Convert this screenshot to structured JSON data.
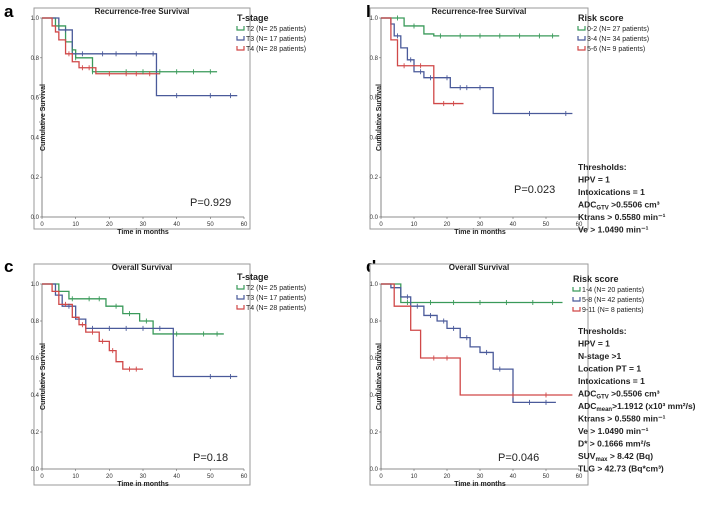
{
  "chart_data": [
    {
      "type": "line",
      "letter": "a",
      "title": "Recurrence-free Survival",
      "xlabel": "Time in months",
      "ylabel": "Cumulative Survival",
      "xlim": [
        0,
        60
      ],
      "ylim": [
        0.0,
        1.0
      ],
      "xticks": [
        "0",
        "10",
        "20",
        "30",
        "40",
        "50",
        "60"
      ],
      "yticks": [
        "0.0",
        "0.2",
        "0.4",
        "0.6",
        "0.8",
        "1.0"
      ],
      "p_value": "P=0.929",
      "legend_title": "T-stage",
      "legend_position": "outside-right",
      "series": [
        {
          "name": "T2",
          "label": "T2  (N= 25 patients)",
          "color": "#3a9a5a",
          "x": [
            0,
            4,
            7,
            9,
            10,
            15,
            52
          ],
          "y": [
            1.0,
            0.96,
            0.88,
            0.84,
            0.8,
            0.73,
            0.73
          ]
        },
        {
          "name": "T3",
          "label": "T3  (N= 17 patients)",
          "color": "#4a5a9a",
          "x": [
            0,
            5,
            9,
            15,
            34,
            58
          ],
          "y": [
            1.0,
            0.94,
            0.82,
            0.82,
            0.61,
            0.61
          ]
        },
        {
          "name": "T4",
          "label": "T4  (N= 28 patients)",
          "color": "#d04848",
          "x": [
            0,
            3,
            4,
            5,
            7,
            9,
            11,
            16,
            35
          ],
          "y": [
            1.0,
            0.96,
            0.93,
            0.89,
            0.82,
            0.78,
            0.75,
            0.72,
            0.72
          ]
        }
      ],
      "censor_marks": [
        {
          "series": 0,
          "x": [
            5,
            9,
            10,
            15,
            25,
            30,
            35,
            40,
            45,
            50
          ]
        },
        {
          "series": 1,
          "x": [
            7,
            12,
            18,
            22,
            28,
            33,
            40,
            50,
            56
          ]
        },
        {
          "series": 2,
          "x": [
            8,
            12,
            14,
            20,
            25,
            28,
            32
          ]
        }
      ],
      "thresholds_title": "",
      "thresholds": []
    },
    {
      "type": "line",
      "letter": "b",
      "title": "Recurrence-free Survival",
      "xlabel": "Time in months",
      "ylabel": "Cumulative Survival",
      "xlim": [
        0,
        60
      ],
      "ylim": [
        0.0,
        1.0
      ],
      "xticks": [
        "0",
        "10",
        "20",
        "30",
        "40",
        "50",
        "60"
      ],
      "yticks": [
        "0.0",
        "0.2",
        "0.4",
        "0.6",
        "0.8",
        "1.0"
      ],
      "p_value": "P=0.023",
      "legend_title": "Risk score",
      "legend_position": "outside-right",
      "series": [
        {
          "name": "0-2",
          "label": "0-2  (N= 27 patients)",
          "color": "#3a9a5a",
          "x": [
            0,
            7,
            13,
            16,
            54
          ],
          "y": [
            1.0,
            0.96,
            0.92,
            0.91,
            0.91
          ]
        },
        {
          "name": "3-4",
          "label": "3-4  (N= 34 patients)",
          "color": "#4a5a9a",
          "x": [
            0,
            3,
            4,
            6,
            8,
            10,
            13,
            21,
            34,
            58
          ],
          "y": [
            1.0,
            0.97,
            0.91,
            0.85,
            0.79,
            0.73,
            0.7,
            0.65,
            0.52,
            0.52
          ]
        },
        {
          "name": "5-6",
          "label": "5-6  (N= 9 patients)",
          "color": "#d04848",
          "x": [
            0,
            3,
            5,
            9,
            16,
            25
          ],
          "y": [
            1.0,
            0.89,
            0.76,
            0.76,
            0.57,
            0.57
          ]
        }
      ],
      "censor_marks": [
        {
          "series": 0,
          "x": [
            5,
            10,
            18,
            24,
            30,
            36,
            42,
            48,
            52
          ]
        },
        {
          "series": 1,
          "x": [
            5,
            9,
            12,
            15,
            20,
            24,
            26,
            30,
            45,
            56
          ]
        },
        {
          "series": 2,
          "x": [
            7,
            12,
            19,
            22
          ]
        }
      ],
      "thresholds_title": "Thresholds:",
      "thresholds": [
        "HPV = 1",
        "Intoxications = 1",
        "ADCGTV >0.5506 cm³",
        "Ktrans > 0.5580 min⁻¹",
        "Ve > 1.0490 min⁻¹"
      ]
    },
    {
      "type": "line",
      "letter": "c",
      "title": "Overall Survival",
      "xlabel": "Time in months",
      "ylabel": "Cumulative Survival",
      "xlim": [
        0,
        60
      ],
      "ylim": [
        0.0,
        1.0
      ],
      "xticks": [
        "0",
        "10",
        "20",
        "30",
        "40",
        "50",
        "60"
      ],
      "yticks": [
        "0.0",
        "0.2",
        "0.4",
        "0.6",
        "0.8",
        "1.0"
      ],
      "p_value": "P=0.18",
      "legend_title": "T-stage",
      "legend_position": "outside-right",
      "series": [
        {
          "name": "T2",
          "label": "T2  (N= 25 patients)",
          "color": "#3a9a5a",
          "x": [
            0,
            5,
            8,
            11,
            19,
            24,
            29,
            33,
            54
          ],
          "y": [
            1.0,
            0.96,
            0.92,
            0.92,
            0.88,
            0.84,
            0.8,
            0.73,
            0.73
          ]
        },
        {
          "name": "T3",
          "label": "T3  (N= 17 patients)",
          "color": "#4a5a9a",
          "x": [
            0,
            4,
            6,
            10,
            13,
            39,
            58
          ],
          "y": [
            1.0,
            0.94,
            0.88,
            0.81,
            0.76,
            0.5,
            0.5
          ]
        },
        {
          "name": "T4",
          "label": "T4  (N= 28 patients)",
          "color": "#d04848",
          "x": [
            0,
            3,
            5,
            9,
            11,
            13,
            17,
            20,
            22,
            24,
            30
          ],
          "y": [
            1.0,
            0.96,
            0.89,
            0.82,
            0.78,
            0.74,
            0.69,
            0.64,
            0.58,
            0.54,
            0.54
          ]
        }
      ],
      "censor_marks": [
        {
          "series": 0,
          "x": [
            9,
            14,
            17,
            22,
            26,
            31,
            40,
            48,
            52
          ]
        },
        {
          "series": 1,
          "x": [
            8,
            15,
            20,
            25,
            30,
            35,
            50,
            56
          ]
        },
        {
          "series": 2,
          "x": [
            7,
            12,
            15,
            18,
            21,
            26,
            28
          ]
        }
      ],
      "thresholds_title": "",
      "thresholds": []
    },
    {
      "type": "line",
      "letter": "d",
      "title": "Overall Survival",
      "xlabel": "Time in months",
      "ylabel": "Cumulative Survival",
      "xlim": [
        0,
        60
      ],
      "ylim": [
        0.0,
        1.0
      ],
      "xticks": [
        "0",
        "10",
        "20",
        "30",
        "40",
        "50",
        "60"
      ],
      "yticks": [
        "0.0",
        "0.2",
        "0.4",
        "0.6",
        "0.8",
        "1.0"
      ],
      "p_value": "P=0.046",
      "legend_title": "Risk score",
      "legend_position": "outside-right",
      "series": [
        {
          "name": "1-4",
          "label": "1-4  (N= 20 patients)",
          "color": "#3a9a5a",
          "x": [
            0,
            6,
            55
          ],
          "y": [
            1.0,
            0.9,
            0.9
          ]
        },
        {
          "name": "5-8",
          "label": "5-8  (N= 42 patients)",
          "color": "#4a5a9a",
          "x": [
            0,
            3,
            6,
            9,
            13,
            17,
            20,
            24,
            27,
            30,
            34,
            40,
            53
          ],
          "y": [
            1.0,
            0.98,
            0.93,
            0.88,
            0.83,
            0.8,
            0.76,
            0.71,
            0.66,
            0.63,
            0.54,
            0.36,
            0.36
          ]
        },
        {
          "name": "9-11",
          "label": "9-11  (N= 8 patients)",
          "color": "#d04848",
          "x": [
            0,
            4,
            9,
            12,
            24,
            58
          ],
          "y": [
            1.0,
            0.88,
            0.75,
            0.6,
            0.4,
            0.4
          ]
        }
      ],
      "censor_marks": [
        {
          "series": 0,
          "x": [
            8,
            15,
            22,
            30,
            38,
            46,
            52
          ]
        },
        {
          "series": 1,
          "x": [
            8,
            11,
            15,
            19,
            22,
            26,
            32,
            36,
            45,
            50
          ]
        },
        {
          "series": 2,
          "x": [
            16,
            20,
            40,
            50
          ]
        }
      ],
      "thresholds_title": "Thresholds:",
      "thresholds": [
        "HPV = 1",
        "N-stage >1",
        "Location PT = 1",
        "Intoxications = 1",
        "ADCGTV >0.5506 cm³",
        "ADCmean>1.1912 (x10³ mm²/s)",
        "Ktrans > 0.5580 min⁻¹",
        "Ve > 1.0490 min⁻¹",
        "D* > 0.1666 mm²/s",
        "SUVmax > 8.42 (Bq)",
        "TLG > 42.73 (Bq*cm³)"
      ]
    }
  ]
}
